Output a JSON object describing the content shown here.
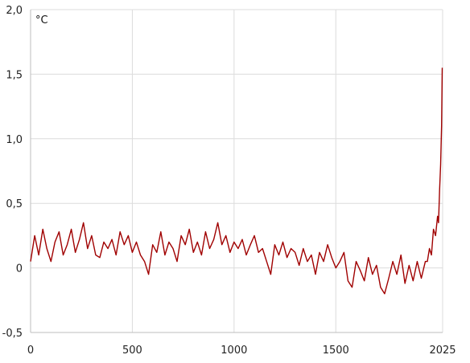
{
  "chart_data": {
    "type": "line",
    "title": "",
    "unit_label": "°C",
    "xlabel": "",
    "ylabel": "",
    "xlim": [
      0,
      2025
    ],
    "ylim": [
      -0.5,
      2.0
    ],
    "x_ticks": [
      {
        "value": 0,
        "label": "0"
      },
      {
        "value": 500,
        "label": "500"
      },
      {
        "value": 1000,
        "label": "1000"
      },
      {
        "value": 1500,
        "label": "1500"
      },
      {
        "value": 2025,
        "label": "2025"
      }
    ],
    "y_ticks": [
      {
        "value": 2.0,
        "label": "2,0"
      },
      {
        "value": 1.5,
        "label": "1,5"
      },
      {
        "value": 1.0,
        "label": "1,0"
      },
      {
        "value": 0.5,
        "label": "0,5"
      },
      {
        "value": 0.0,
        "label": "0"
      },
      {
        "value": -0.5,
        "label": "-0,5"
      }
    ],
    "grid": true,
    "series": [
      {
        "color": "#a00000",
        "x": [
          0,
          20,
          40,
          60,
          80,
          100,
          120,
          140,
          160,
          180,
          200,
          220,
          240,
          260,
          280,
          300,
          320,
          340,
          360,
          380,
          400,
          420,
          440,
          460,
          480,
          500,
          520,
          540,
          560,
          580,
          600,
          620,
          640,
          660,
          680,
          700,
          720,
          740,
          760,
          780,
          800,
          820,
          840,
          860,
          880,
          900,
          920,
          940,
          960,
          980,
          1000,
          1020,
          1040,
          1060,
          1080,
          1100,
          1120,
          1140,
          1160,
          1180,
          1200,
          1220,
          1240,
          1260,
          1280,
          1300,
          1320,
          1340,
          1360,
          1380,
          1400,
          1420,
          1440,
          1460,
          1480,
          1500,
          1520,
          1540,
          1560,
          1580,
          1600,
          1620,
          1640,
          1660,
          1680,
          1700,
          1720,
          1740,
          1760,
          1780,
          1800,
          1820,
          1840,
          1860,
          1880,
          1900,
          1920,
          1940,
          1950,
          1960,
          1970,
          1980,
          1990,
          2000,
          2005,
          2010,
          2015,
          2020,
          2023
        ],
        "y": [
          0.05,
          0.25,
          0.1,
          0.3,
          0.15,
          0.05,
          0.2,
          0.28,
          0.1,
          0.18,
          0.3,
          0.12,
          0.22,
          0.35,
          0.15,
          0.25,
          0.1,
          0.08,
          0.2,
          0.15,
          0.22,
          0.1,
          0.28,
          0.18,
          0.25,
          0.12,
          0.2,
          0.1,
          0.05,
          -0.05,
          0.18,
          0.12,
          0.28,
          0.1,
          0.2,
          0.15,
          0.05,
          0.25,
          0.18,
          0.3,
          0.12,
          0.2,
          0.1,
          0.28,
          0.15,
          0.22,
          0.35,
          0.18,
          0.25,
          0.12,
          0.2,
          0.15,
          0.22,
          0.1,
          0.18,
          0.25,
          0.12,
          0.15,
          0.05,
          -0.05,
          0.18,
          0.1,
          0.2,
          0.08,
          0.15,
          0.12,
          0.02,
          0.15,
          0.05,
          0.1,
          -0.05,
          0.12,
          0.05,
          0.18,
          0.08,
          0.0,
          0.05,
          0.12,
          -0.1,
          -0.15,
          0.05,
          -0.02,
          -0.1,
          0.08,
          -0.05,
          0.02,
          -0.15,
          -0.2,
          -0.08,
          0.05,
          -0.05,
          0.1,
          -0.12,
          0.02,
          -0.1,
          0.05,
          -0.08,
          0.05,
          0.05,
          0.15,
          0.1,
          0.3,
          0.25,
          0.4,
          0.35,
          0.6,
          0.8,
          1.1,
          1.55
        ]
      }
    ]
  }
}
